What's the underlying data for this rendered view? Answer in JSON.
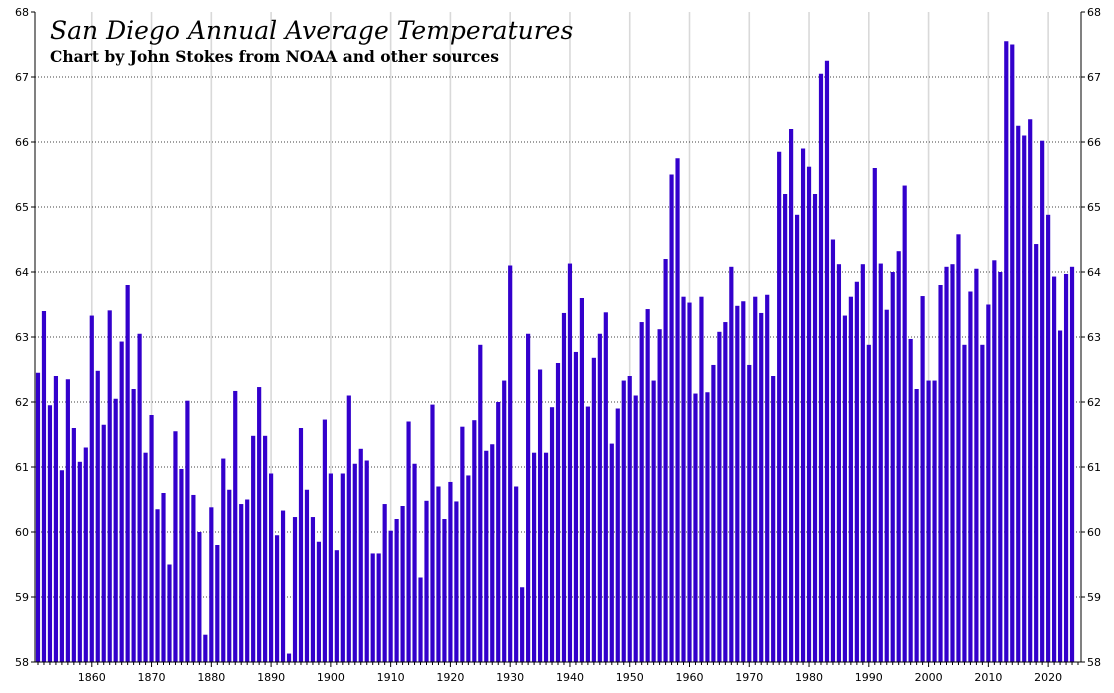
{
  "chart_data": {
    "type": "bar",
    "title": "San Diego Annual Average Temperatures",
    "subtitle": "Chart by John Stokes from NOAA and other sources",
    "xlabel": "",
    "ylabel": "",
    "ylim": [
      58,
      68
    ],
    "yticks": [
      58,
      59,
      60,
      61,
      62,
      63,
      64,
      65,
      66,
      67,
      68
    ],
    "xticks": [
      1860,
      1870,
      1880,
      1890,
      1900,
      1910,
      1920,
      1930,
      1940,
      1950,
      1960,
      1970,
      1980,
      1990,
      2000,
      2010,
      2020
    ],
    "grid": true,
    "bar_color": "#3300cc",
    "x_start": 1851,
    "x_end": 2025,
    "values": [
      62.45,
      63.4,
      61.95,
      62.4,
      60.95,
      62.35,
      61.6,
      61.08,
      61.3,
      63.33,
      62.48,
      61.65,
      63.41,
      62.05,
      62.93,
      63.8,
      62.2,
      63.05,
      61.22,
      61.8,
      60.35,
      60.6,
      59.5,
      61.55,
      60.97,
      62.02,
      60.57,
      60.0,
      58.42,
      60.38,
      59.8,
      61.13,
      60.65,
      62.17,
      60.43,
      60.5,
      61.48,
      62.23,
      61.48,
      60.9,
      59.95,
      60.33,
      58.13,
      60.23,
      61.6,
      60.65,
      60.23,
      59.85,
      61.73,
      60.9,
      59.72,
      60.9,
      62.1,
      61.05,
      61.28,
      61.1,
      59.67,
      59.67,
      60.43,
      60.02,
      60.2,
      60.4,
      61.7,
      61.05,
      59.3,
      60.48,
      61.96,
      60.7,
      60.2,
      60.77,
      60.47,
      61.62,
      60.87,
      61.72,
      62.88,
      61.25,
      61.35,
      62.0,
      62.33,
      64.1,
      60.7,
      59.15,
      63.05,
      61.22,
      62.5,
      61.22,
      61.92,
      62.6,
      63.37,
      64.13,
      62.77,
      63.6,
      61.93,
      62.68,
      63.05,
      63.38,
      61.36,
      61.9,
      62.33,
      62.4,
      62.1,
      63.23,
      63.43,
      62.33,
      63.12,
      64.2,
      65.5,
      65.75,
      63.62,
      63.53,
      62.13,
      63.62,
      62.15,
      62.57,
      63.08,
      63.23,
      64.08,
      63.48,
      63.55,
      62.57,
      63.62,
      63.37,
      63.65,
      62.4,
      65.85,
      65.2,
      66.2,
      64.88,
      65.9,
      65.62,
      65.2,
      67.05,
      67.25,
      64.5,
      64.12,
      63.33,
      63.62,
      63.85,
      64.12,
      62.88,
      65.6,
      64.13,
      63.42,
      64.0,
      64.32,
      65.33,
      62.97,
      62.2,
      63.63,
      62.33,
      62.33,
      63.8,
      64.08,
      64.12,
      64.58,
      62.88,
      63.7,
      64.05,
      62.88,
      63.5,
      64.18,
      64.0,
      67.55,
      67.5,
      66.25,
      66.1,
      66.35,
      64.43,
      66.02,
      64.88,
      63.93,
      63.1,
      63.97,
      64.08
    ]
  }
}
